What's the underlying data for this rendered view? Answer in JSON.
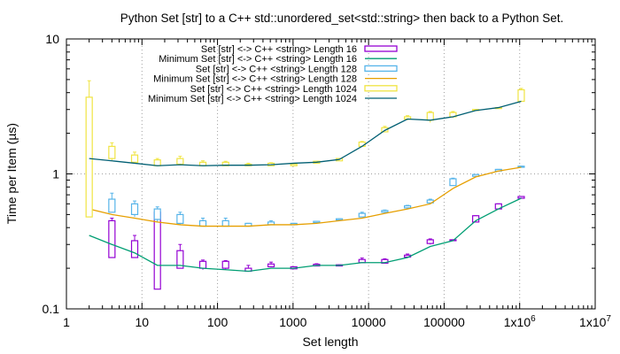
{
  "chart_data": {
    "type": "candlestick-line",
    "title": "Python Set [str] to a C++ std::unordered_set<std::string> then back to a Python Set.",
    "xlabel": "Set length",
    "ylabel": "Time per Item (µs)",
    "x_scale": "log",
    "y_scale": "log",
    "xlim": [
      1,
      10000000
    ],
    "ylim": [
      0.1,
      10
    ],
    "grid": "dotted, at major ticks",
    "legend_position": "top-right",
    "x_ticks": [
      {
        "value": 1,
        "label": "1"
      },
      {
        "value": 10,
        "label": "10"
      },
      {
        "value": 100,
        "label": "100"
      },
      {
        "value": 1000,
        "label": "1000"
      },
      {
        "value": 10000,
        "label": "10000"
      },
      {
        "value": 100000,
        "label": "100000"
      },
      {
        "value": 1000000,
        "label": "1x10^6"
      },
      {
        "value": 10000000,
        "label": "1x10^7"
      }
    ],
    "y_ticks": [
      {
        "value": 0.1,
        "label": "0.1"
      },
      {
        "value": 1,
        "label": "1"
      },
      {
        "value": 10,
        "label": "10"
      }
    ],
    "x": [
      2,
      4,
      8,
      16,
      32,
      64,
      128,
      256,
      512,
      1024,
      2048,
      4096,
      8192,
      16384,
      32768,
      65536,
      131072,
      262144,
      524288,
      1048576
    ],
    "series": [
      {
        "name": "Set [str] <-> C++ <string> Length 16",
        "kind": "box",
        "color": "#9400d3",
        "boxes": [
          null,
          {
            "low": 0.24,
            "q1": 0.24,
            "q3": 0.45,
            "high": 0.47
          },
          {
            "low": 0.24,
            "q1": 0.24,
            "q3": 0.32,
            "high": 0.35
          },
          {
            "low": 0.14,
            "q1": 0.14,
            "q3": 0.52,
            "high": 0.55
          },
          {
            "low": 0.2,
            "q1": 0.2,
            "q3": 0.27,
            "high": 0.3
          },
          {
            "low": 0.195,
            "q1": 0.2,
            "q3": 0.225,
            "high": 0.23
          },
          {
            "low": 0.195,
            "q1": 0.2,
            "q3": 0.225,
            "high": 0.228
          },
          {
            "low": 0.19,
            "q1": 0.19,
            "q3": 0.2,
            "high": 0.21
          },
          {
            "low": 0.205,
            "q1": 0.205,
            "q3": 0.215,
            "high": 0.222
          },
          {
            "low": 0.198,
            "q1": 0.198,
            "q3": 0.205,
            "high": 0.205
          },
          {
            "low": 0.208,
            "q1": 0.208,
            "q3": 0.214,
            "high": 0.216
          },
          {
            "low": 0.208,
            "q1": 0.208,
            "q3": 0.212,
            "high": 0.212
          },
          {
            "low": 0.218,
            "q1": 0.22,
            "q3": 0.232,
            "high": 0.238
          },
          {
            "low": 0.218,
            "q1": 0.218,
            "q3": 0.232,
            "high": 0.235
          },
          {
            "low": 0.242,
            "q1": 0.242,
            "q3": 0.25,
            "high": 0.255
          },
          {
            "low": 0.3,
            "q1": 0.305,
            "q3": 0.325,
            "high": 0.33
          },
          {
            "low": 0.32,
            "q1": 0.32,
            "q3": 0.325,
            "high": 0.325
          },
          {
            "low": 0.44,
            "q1": 0.44,
            "q3": 0.49,
            "high": 0.49
          },
          {
            "low": 0.55,
            "q1": 0.55,
            "q3": 0.6,
            "high": 0.6
          },
          {
            "low": 0.66,
            "q1": 0.66,
            "q3": 0.68,
            "high": 0.68
          }
        ]
      },
      {
        "name": "Minimum Set [str] <-> C++ <string> Length 16",
        "kind": "line",
        "color": "#009e73",
        "values": [
          0.35,
          0.3,
          0.26,
          0.21,
          0.21,
          0.2,
          0.195,
          0.19,
          0.2,
          0.2,
          0.21,
          0.21,
          0.22,
          0.22,
          0.24,
          0.29,
          0.32,
          0.45,
          0.55,
          0.66
        ]
      },
      {
        "name": "Set [str] <-> C++ <string> Length 128",
        "kind": "box",
        "color": "#56b4e9",
        "boxes": [
          null,
          {
            "low": 0.52,
            "q1": 0.52,
            "q3": 0.65,
            "high": 0.72
          },
          {
            "low": 0.48,
            "q1": 0.5,
            "q3": 0.6,
            "high": 0.63
          },
          {
            "low": 0.44,
            "q1": 0.46,
            "q3": 0.55,
            "high": 0.57
          },
          {
            "low": 0.42,
            "q1": 0.43,
            "q3": 0.5,
            "high": 0.52
          },
          {
            "low": 0.41,
            "q1": 0.41,
            "q3": 0.45,
            "high": 0.47
          },
          {
            "low": 0.41,
            "q1": 0.41,
            "q3": 0.45,
            "high": 0.47
          },
          {
            "low": 0.41,
            "q1": 0.41,
            "q3": 0.43,
            "high": 0.43
          },
          {
            "low": 0.42,
            "q1": 0.42,
            "q3": 0.44,
            "high": 0.45
          },
          {
            "low": 0.42,
            "q1": 0.42,
            "q3": 0.43,
            "high": 0.43
          },
          {
            "low": 0.435,
            "q1": 0.435,
            "q3": 0.445,
            "high": 0.445
          },
          {
            "low": 0.455,
            "q1": 0.455,
            "q3": 0.465,
            "high": 0.465
          },
          {
            "low": 0.48,
            "q1": 0.48,
            "q3": 0.51,
            "high": 0.52
          },
          {
            "low": 0.52,
            "q1": 0.52,
            "q3": 0.535,
            "high": 0.54
          },
          {
            "low": 0.55,
            "q1": 0.56,
            "q3": 0.58,
            "high": 0.585
          },
          {
            "low": 0.6,
            "q1": 0.61,
            "q3": 0.64,
            "high": 0.65
          },
          {
            "low": 0.82,
            "q1": 0.82,
            "q3": 0.92,
            "high": 0.93
          },
          {
            "low": 0.96,
            "q1": 0.96,
            "q3": 0.99,
            "high": 0.99
          },
          {
            "low": 1.05,
            "q1": 1.05,
            "q3": 1.08,
            "high": 1.08
          },
          {
            "low": 1.12,
            "q1": 1.12,
            "q3": 1.14,
            "high": 1.14
          }
        ]
      },
      {
        "name": "Minimum Set [str] <-> C++ <string> Length 128",
        "kind": "line",
        "color": "#e69f00",
        "values": [
          0.55,
          0.5,
          0.47,
          0.44,
          0.42,
          0.41,
          0.41,
          0.41,
          0.42,
          0.42,
          0.43,
          0.45,
          0.47,
          0.51,
          0.55,
          0.6,
          0.78,
          0.95,
          1.05,
          1.12
        ]
      },
      {
        "name": "Set [str] <-> C++ <string> Length 1024",
        "kind": "box",
        "color": "#f0e442",
        "boxes": [
          {
            "low": 0.48,
            "q1": 0.48,
            "q3": 3.7,
            "high": 4.9
          },
          {
            "low": 1.25,
            "q1": 1.3,
            "q3": 1.6,
            "high": 1.7
          },
          {
            "low": 1.2,
            "q1": 1.22,
            "q3": 1.38,
            "high": 1.45
          },
          {
            "low": 1.15,
            "q1": 1.15,
            "q3": 1.27,
            "high": 1.3
          },
          {
            "low": 1.18,
            "q1": 1.18,
            "q3": 1.3,
            "high": 1.35
          },
          {
            "low": 1.15,
            "q1": 1.15,
            "q3": 1.22,
            "high": 1.25
          },
          {
            "low": 1.15,
            "q1": 1.15,
            "q3": 1.22,
            "high": 1.24
          },
          {
            "low": 1.15,
            "q1": 1.15,
            "q3": 1.18,
            "high": 1.2
          },
          {
            "low": 1.15,
            "q1": 1.15,
            "q3": 1.2,
            "high": 1.21
          },
          {
            "low": 1.15,
            "q1": 1.15,
            "q3": 1.18,
            "high": 1.18
          },
          {
            "low": 1.2,
            "q1": 1.2,
            "q3": 1.24,
            "high": 1.24
          },
          {
            "low": 1.25,
            "q1": 1.25,
            "q3": 1.3,
            "high": 1.3
          },
          {
            "low": 1.6,
            "q1": 1.6,
            "q3": 1.72,
            "high": 1.74
          },
          {
            "low": 2.05,
            "q1": 2.05,
            "q3": 2.2,
            "high": 2.25
          },
          {
            "low": 2.5,
            "q1": 2.55,
            "q3": 2.65,
            "high": 2.7
          },
          {
            "low": 2.4,
            "q1": 2.5,
            "q3": 2.85,
            "high": 2.9
          },
          {
            "low": 2.6,
            "q1": 2.65,
            "q3": 2.85,
            "high": 2.9
          },
          {
            "low": 2.95,
            "q1": 2.95,
            "q3": 3.0,
            "high": 3.0
          },
          {
            "low": 3.05,
            "q1": 3.05,
            "q3": 3.1,
            "high": 3.1
          },
          {
            "low": 3.45,
            "q1": 3.45,
            "q3": 4.2,
            "high": 4.3
          }
        ]
      },
      {
        "name": "Minimum Set [str] <-> C++ <string> Length 1024",
        "kind": "line",
        "color": "#005f73",
        "values": [
          1.3,
          1.25,
          1.2,
          1.15,
          1.17,
          1.15,
          1.16,
          1.16,
          1.17,
          1.2,
          1.22,
          1.28,
          1.6,
          2.1,
          2.55,
          2.5,
          2.65,
          2.95,
          3.1,
          3.45
        ]
      }
    ]
  }
}
